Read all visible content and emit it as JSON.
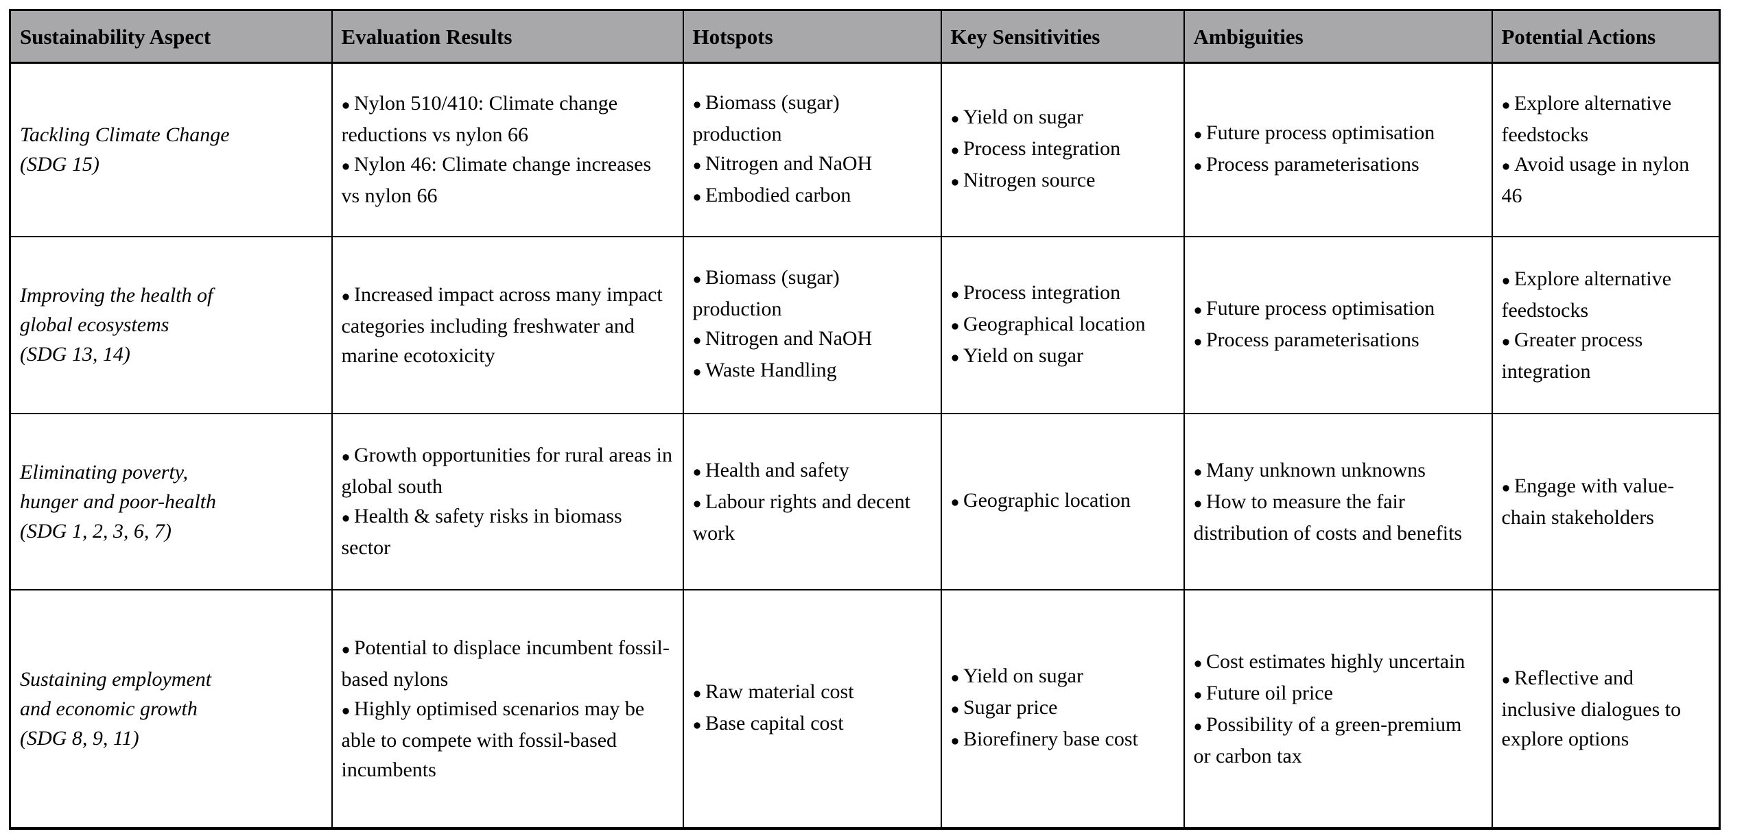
{
  "table": {
    "columns": [
      "Sustainability Aspect",
      "Evaluation Results",
      "Hotspots",
      "Key Sensitivities",
      "Ambiguities",
      "Potential Actions"
    ],
    "rows": [
      {
        "aspect_lines": [
          "Tackling Climate Change",
          "(SDG 15)"
        ],
        "evaluation_results": [
          "Nylon 510/410: Climate change reductions vs nylon 66",
          "Nylon 46: Climate change increases vs nylon 66"
        ],
        "hotspots": [
          "Biomass (sugar) production",
          "Nitrogen and NaOH",
          "Embodied carbon"
        ],
        "key_sensitivities": [
          "Yield on sugar",
          "Process integration",
          "Nitrogen source"
        ],
        "ambiguities": [
          "Future process optimisation",
          "Process parameterisations"
        ],
        "potential_actions": [
          "Explore alternative feedstocks",
          "Avoid usage in nylon 46"
        ]
      },
      {
        "aspect_lines": [
          "Improving the health of",
          "global ecosystems",
          "(SDG 13, 14)"
        ],
        "evaluation_results": [
          "Increased impact across many impact categories including freshwater and marine ecotoxicity"
        ],
        "hotspots": [
          "Biomass (sugar) production",
          "Nitrogen and NaOH",
          "Waste Handling"
        ],
        "key_sensitivities": [
          "Process integration",
          "Geographical location",
          "Yield on sugar"
        ],
        "ambiguities": [
          "Future process optimisation",
          "Process parameterisations"
        ],
        "potential_actions": [
          "Explore alternative feedstocks",
          "Greater process integration"
        ]
      },
      {
        "aspect_lines": [
          "Eliminating poverty,",
          "hunger and poor-health",
          "(SDG 1, 2, 3, 6, 7)"
        ],
        "evaluation_results": [
          "Growth opportunities for rural areas in global south",
          "Health & safety risks in biomass sector"
        ],
        "hotspots": [
          "Health and safety",
          "Labour rights and decent work"
        ],
        "key_sensitivities": [
          "Geographic location"
        ],
        "ambiguities": [
          "Many unknown unknowns",
          "How to measure the fair distribution of costs and benefits"
        ],
        "potential_actions": [
          "Engage with value-chain stakeholders"
        ]
      },
      {
        "aspect_lines": [
          "Sustaining employment",
          "and economic growth",
          "(SDG 8, 9, 11)"
        ],
        "evaluation_results": [
          "Potential to displace incumbent fossil-based nylons",
          "Highly optimised scenarios may be able to compete with fossil-based incumbents"
        ],
        "hotspots": [
          "Raw material cost",
          "Base capital cost"
        ],
        "key_sensitivities": [
          "Yield on sugar",
          "Sugar price",
          "Biorefinery base cost"
        ],
        "ambiguities": [
          "Cost estimates highly uncertain",
          "Future oil price",
          "Possibility of a green-premium or carbon tax"
        ],
        "potential_actions": [
          "Reflective and inclusive dialogues to explore options"
        ]
      }
    ]
  },
  "colors": {
    "header_bg": "#a8a8ab",
    "border": "#000000",
    "text": "#000000",
    "page_bg": "#ffffff"
  }
}
